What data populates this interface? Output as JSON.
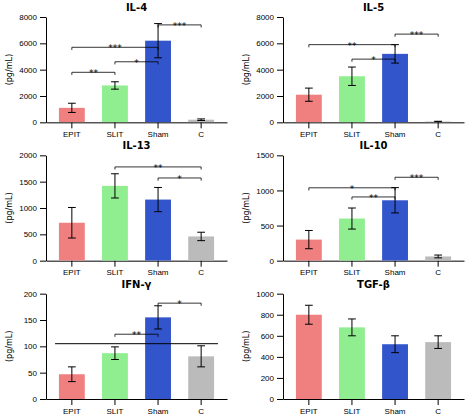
{
  "chart_data": [
    {
      "type": "bar",
      "title": "IL-4",
      "ylabel": "(pg/mL)",
      "categories": [
        "EPIT",
        "SLIT",
        "Sham",
        "C"
      ],
      "values": [
        1100,
        2800,
        6200,
        200
      ],
      "errors": [
        350,
        280,
        1300,
        60
      ],
      "colors": [
        "#F08080",
        "#90EE90",
        "#3355CC",
        "#BBBBBB"
      ],
      "ylim": [
        0,
        8000
      ],
      "yticks": [
        0,
        2000,
        4000,
        6000,
        8000
      ],
      "annotations": [
        {
          "from": "EPIT",
          "to": "SLIT",
          "y": 3600,
          "label": "**"
        },
        {
          "from": "SLIT",
          "to": "Sham",
          "y": 4400,
          "label": "*"
        },
        {
          "from": "EPIT",
          "to": "Sham",
          "y": 5500,
          "label": "***"
        },
        {
          "from": "Sham",
          "to": "C",
          "y": 7200,
          "label": "***"
        }
      ]
    },
    {
      "type": "bar",
      "title": "IL-5",
      "ylabel": "(pg/mL)",
      "categories": [
        "EPIT",
        "SLIT",
        "Sham",
        "C"
      ],
      "values": [
        2100,
        3500,
        5200,
        60
      ],
      "errors": [
        500,
        700,
        700,
        20
      ],
      "colors": [
        "#F08080",
        "#90EE90",
        "#3355CC",
        "#BBBBBB"
      ],
      "ylim": [
        0,
        8000
      ],
      "yticks": [
        0,
        2000,
        4000,
        6000,
        8000
      ],
      "annotations": [
        {
          "from": "SLIT",
          "to": "Sham",
          "y": 4600,
          "label": "*"
        },
        {
          "from": "EPIT",
          "to": "Sham",
          "y": 5700,
          "label": "**"
        },
        {
          "from": "Sham",
          "to": "C",
          "y": 6500,
          "label": "***"
        }
      ]
    },
    {
      "type": "bar",
      "title": "IL-13",
      "ylabel": "(pg/mL)",
      "categories": [
        "EPIT",
        "SLIT",
        "Sham",
        "C"
      ],
      "values": [
        720,
        1420,
        1160,
        460
      ],
      "errors": [
        290,
        230,
        230,
        80
      ],
      "colors": [
        "#F08080",
        "#90EE90",
        "#3355CC",
        "#BBBBBB"
      ],
      "ylim": [
        0,
        2000
      ],
      "yticks": [
        0,
        500,
        1000,
        1500,
        2000
      ],
      "annotations": [
        {
          "from": "Sham",
          "to": "C",
          "y": 1520,
          "label": "*"
        },
        {
          "from": "SLIT",
          "to": "C",
          "y": 1730,
          "label": "**"
        }
      ]
    },
    {
      "type": "bar",
      "title": "IL-10",
      "ylabel": "(pg/mL)",
      "categories": [
        "EPIT",
        "SLIT",
        "Sham",
        "C"
      ],
      "values": [
        300,
        600,
        860,
        60
      ],
      "errors": [
        130,
        150,
        180,
        20
      ],
      "colors": [
        "#F08080",
        "#90EE90",
        "#3355CC",
        "#BBBBBB"
      ],
      "ylim": [
        0,
        1500
      ],
      "yticks": [
        0,
        500,
        1000,
        1500
      ],
      "annotations": [
        {
          "from": "SLIT",
          "to": "Sham",
          "y": 870,
          "label": "**"
        },
        {
          "from": "EPIT",
          "to": "Sham",
          "y": 1000,
          "label": "*"
        },
        {
          "from": "Sham",
          "to": "C",
          "y": 1150,
          "label": "***"
        }
      ]
    },
    {
      "type": "bar",
      "title": "IFN-γ",
      "ylabel": "(pg/mL)",
      "categories": [
        "EPIT",
        "SLIT",
        "Sham",
        "C"
      ],
      "values": [
        47,
        87,
        155,
        81
      ],
      "errors": [
        14,
        12,
        22,
        20
      ],
      "colors": [
        "#F08080",
        "#90EE90",
        "#3355CC",
        "#BBBBBB"
      ],
      "ylim": [
        0,
        200
      ],
      "yticks": [
        0,
        50,
        100,
        150,
        200
      ],
      "annotations": [
        {
          "from": "SLIT",
          "to": "Sham",
          "y": 118,
          "label": "**"
        },
        {
          "from": "Sham",
          "to": "C",
          "y": 177,
          "label": "*"
        }
      ],
      "hline": 105
    },
    {
      "type": "bar",
      "title": "TGF-β",
      "ylabel": "(pg/mL)",
      "categories": [
        "EPIT",
        "SLIT",
        "Sham",
        "C"
      ],
      "values": [
        800,
        680,
        520,
        540
      ],
      "errors": [
        90,
        80,
        80,
        60
      ],
      "colors": [
        "#F08080",
        "#90EE90",
        "#3355CC",
        "#BBBBBB"
      ],
      "ylim": [
        0,
        1000
      ],
      "yticks": [
        0,
        200,
        400,
        600,
        800,
        1000
      ],
      "annotations": []
    }
  ]
}
